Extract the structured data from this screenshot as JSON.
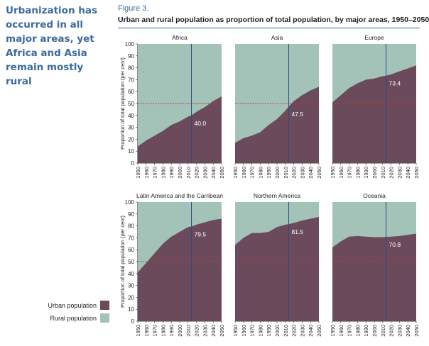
{
  "side_title": "Urbanization has occurred in all major areas, yet Africa and Asia remain mostly rural",
  "figure": {
    "label": "Figure 3.",
    "title": "Urban and rural population as proportion of total population, by major areas, 1950–2050"
  },
  "legend": {
    "urban_label": "Urban population",
    "rural_label": "Rural population"
  },
  "colors": {
    "urban": "#6b4a5b",
    "rural": "#a3c2b8",
    "marker_line": "#2d4a8a",
    "threshold_line": "#c0392b",
    "title_blue": "#3c6b9d"
  },
  "chart_data": {
    "type": "area",
    "ylabel": "Proportion of total population (per cent)",
    "ylim": [
      0,
      100
    ],
    "yticks": [
      0,
      10,
      20,
      30,
      40,
      50,
      60,
      70,
      80,
      90,
      100
    ],
    "xlim": [
      1950,
      2050
    ],
    "xticks": [
      "1950",
      "1960",
      "1970",
      "1980",
      "1990",
      "2000",
      "2010",
      "2020",
      "2030",
      "2040",
      "2050"
    ],
    "marker_year": 2014,
    "threshold": 50,
    "x": [
      1950,
      1960,
      1970,
      1980,
      1990,
      2000,
      2010,
      2014,
      2020,
      2030,
      2040,
      2050
    ],
    "panels": [
      {
        "name": "Africa",
        "marker_label": "40.0",
        "urban": [
          14,
          19,
          23,
          27,
          32,
          35,
          39,
          40,
          43,
          47,
          52,
          56
        ]
      },
      {
        "name": "Asia",
        "marker_label": "47.5",
        "urban": [
          17,
          21,
          23,
          26,
          32,
          37,
          44,
          47.5,
          52,
          57,
          61,
          64
        ]
      },
      {
        "name": "Europe",
        "marker_label": "73.4",
        "urban": [
          51,
          57,
          63,
          67,
          70,
          71,
          73,
          73.4,
          74.5,
          77,
          79.5,
          82
        ]
      },
      {
        "name": "Latin America and the Carribean",
        "marker_label": "79.5",
        "urban": [
          41,
          49,
          57,
          65,
          71,
          75,
          79,
          79.5,
          81,
          83,
          85,
          86
        ]
      },
      {
        "name": "Northern America",
        "marker_label": "81.5",
        "urban": [
          64,
          70,
          74,
          74,
          75,
          79,
          81,
          81.5,
          82.5,
          84.5,
          86,
          87.5
        ]
      },
      {
        "name": "Oceania",
        "marker_label": "70.8",
        "urban": [
          62,
          67,
          71,
          71.5,
          71,
          70.5,
          70.5,
          70.8,
          71,
          71.5,
          72.5,
          73.5
        ]
      }
    ]
  }
}
